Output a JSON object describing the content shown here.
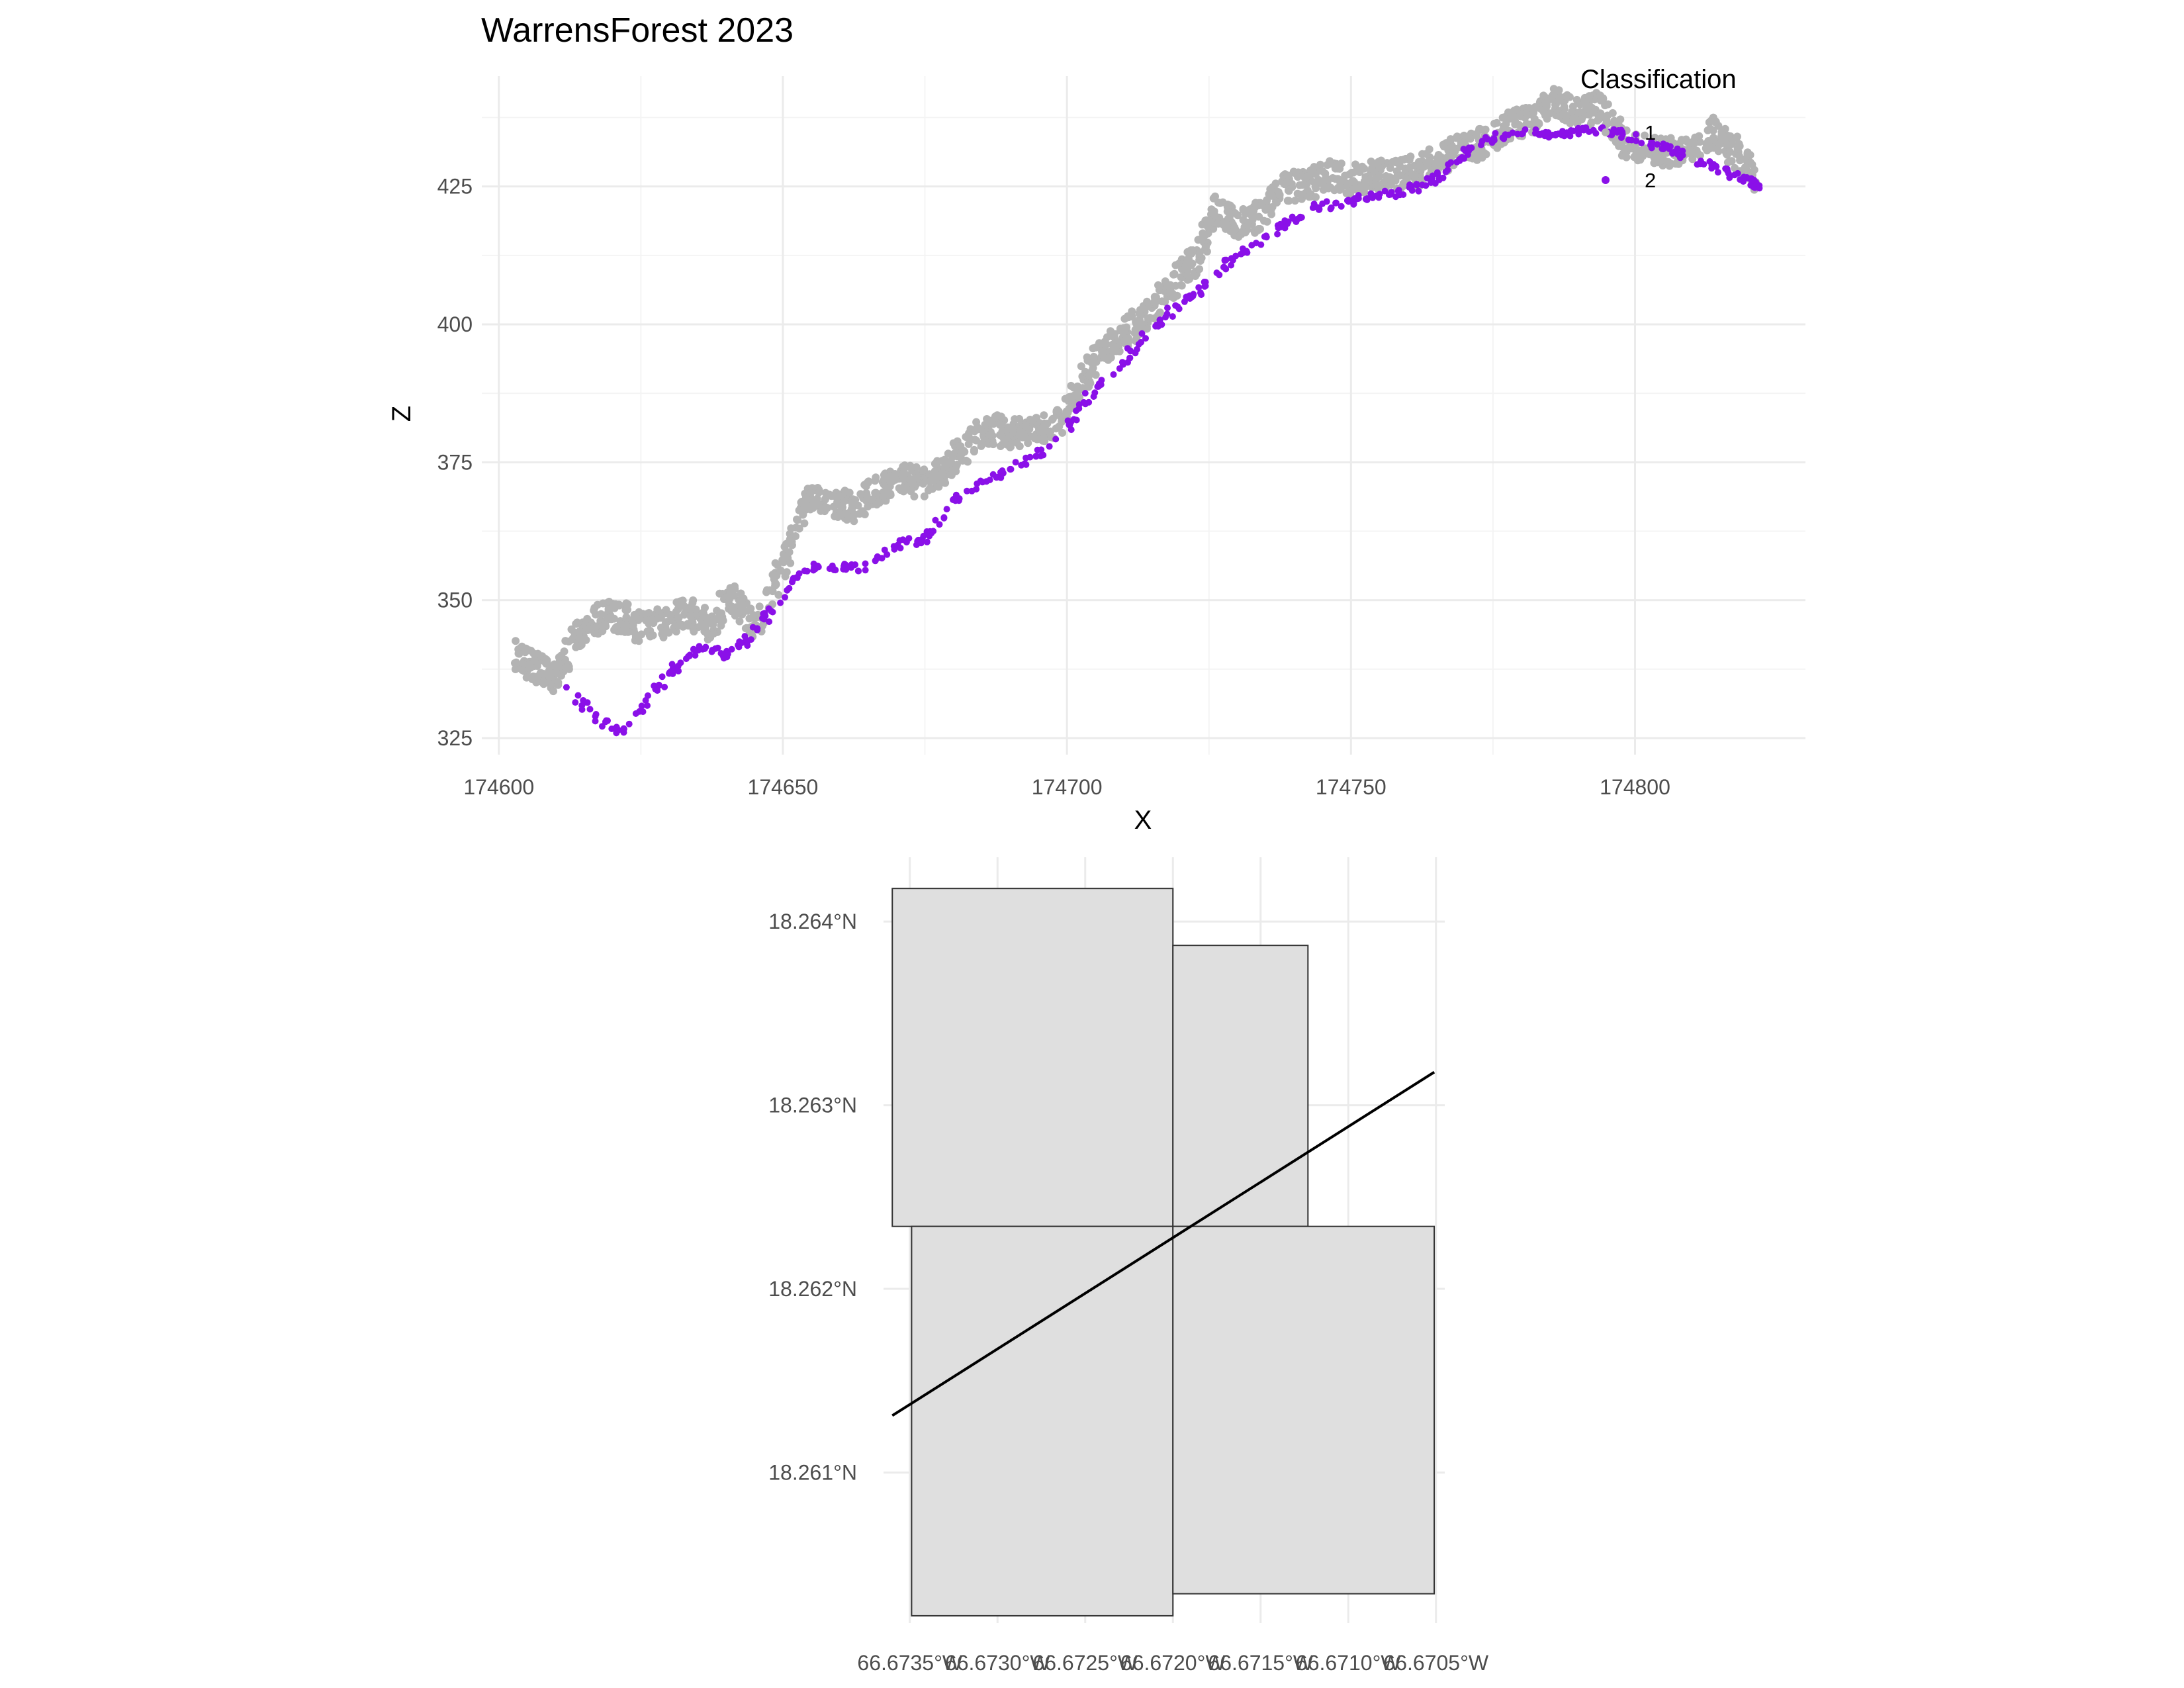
{
  "chart_data": [
    {
      "type": "scatter",
      "title": "WarrensForest 2023",
      "xlabel": "X",
      "ylabel": "Z",
      "xlim": [
        174597,
        174830
      ],
      "ylim": [
        322,
        445
      ],
      "xticks": [
        174600,
        174650,
        174700,
        174750,
        174800
      ],
      "xtick_labels": [
        "174600",
        "174650",
        "174700",
        "174750",
        "174800"
      ],
      "yticks": [
        325,
        350,
        375,
        400,
        425
      ],
      "ytick_labels": [
        "325",
        "350",
        "375",
        "400",
        "425"
      ],
      "grid": true,
      "legend": {
        "title": "Classification",
        "placement": "top-right",
        "entries": [
          {
            "label": "1",
            "color": "#b3b3b3"
          },
          {
            "label": "2",
            "color": "#8a10e8"
          }
        ]
      },
      "series": [
        {
          "name": "1",
          "color": "#b3b3b3",
          "profile": [
            [
              174603,
              340
            ],
            [
              174606,
              338
            ],
            [
              174610,
              336
            ],
            [
              174614,
              344
            ],
            [
              174618,
              347
            ],
            [
              174622,
              347
            ],
            [
              174625,
              345
            ],
            [
              174629,
              346
            ],
            [
              174633,
              348
            ],
            [
              174637,
              345
            ],
            [
              174641,
              351
            ],
            [
              174645,
              345
            ],
            [
              174650,
              356
            ],
            [
              174654,
              369
            ],
            [
              174658,
              368
            ],
            [
              174662,
              367
            ],
            [
              174667,
              370
            ],
            [
              174671,
              372
            ],
            [
              174675,
              371
            ],
            [
              174679,
              374
            ],
            [
              174683,
              379
            ],
            [
              174687,
              381
            ],
            [
              174691,
              380
            ],
            [
              174695,
              381
            ],
            [
              174699,
              382
            ],
            [
              174703,
              391
            ],
            [
              174707,
              396
            ],
            [
              174711,
              399
            ],
            [
              174715,
              402
            ],
            [
              174719,
              408
            ],
            [
              174723,
              412
            ],
            [
              174726,
              421
            ],
            [
              174730,
              418
            ],
            [
              174734,
              420
            ],
            [
              174738,
              425
            ],
            [
              174742,
              425
            ],
            [
              174746,
              427
            ],
            [
              174750,
              426
            ],
            [
              174754,
              427
            ],
            [
              174758,
              427
            ],
            [
              174762,
              428
            ],
            [
              174766,
              430
            ],
            [
              174770,
              432
            ],
            [
              174774,
              433
            ],
            [
              174778,
              436
            ],
            [
              174782,
              437
            ],
            [
              174786,
              440
            ],
            [
              174790,
              438
            ],
            [
              174794,
              440
            ],
            [
              174798,
              433
            ],
            [
              174802,
              432
            ],
            [
              174806,
              431
            ],
            [
              174810,
              432
            ],
            [
              174814,
              435
            ],
            [
              174818,
              431
            ],
            [
              174821,
              427
            ]
          ]
        },
        {
          "name": "2",
          "color": "#8a10e8",
          "profile": [
            [
              174612,
              334
            ],
            [
              174618,
              328
            ],
            [
              174622,
              326
            ],
            [
              174628,
              334
            ],
            [
              174632,
              339
            ],
            [
              174636,
              342
            ],
            [
              174640,
              340
            ],
            [
              174644,
              343
            ],
            [
              174648,
              348
            ],
            [
              174654,
              356
            ],
            [
              174660,
              356
            ],
            [
              174664,
              356
            ],
            [
              174670,
              360
            ],
            [
              174675,
              361
            ],
            [
              174680,
              368
            ],
            [
              174686,
              372
            ],
            [
              174692,
              375
            ],
            [
              174698,
              378
            ],
            [
              174703,
              386
            ],
            [
              174708,
              391
            ],
            [
              174713,
              397
            ],
            [
              174718,
              402
            ],
            [
              174723,
              406
            ],
            [
              174728,
              411
            ],
            [
              174733,
              414
            ],
            [
              174738,
              418
            ],
            [
              174743,
              421
            ],
            [
              174748,
              422
            ],
            [
              174753,
              423
            ],
            [
              174758,
              424
            ],
            [
              174762,
              425
            ],
            [
              174766,
              427
            ],
            [
              174770,
              431
            ],
            [
              174775,
              434
            ],
            [
              174780,
              435
            ],
            [
              174785,
              434
            ],
            [
              174790,
              435
            ],
            [
              174795,
              435
            ],
            [
              174800,
              434
            ],
            [
              174805,
              432
            ],
            [
              174810,
              430
            ],
            [
              174815,
              428
            ],
            [
              174820,
              426
            ],
            [
              174822,
              425
            ]
          ]
        }
      ]
    },
    {
      "type": "map",
      "xlim": [
        -66.67365,
        -66.67045
      ],
      "ylim": [
        18.26018,
        18.26435
      ],
      "xticks": [
        -66.6735,
        -66.673,
        -66.6725,
        -66.672,
        -66.6715,
        -66.671,
        -66.6705
      ],
      "xtick_labels": [
        "66.6735°W",
        "66.6730°W",
        "66.6725°W",
        "66.6720°W",
        "66.6715°W",
        "66.6710°W",
        "66.6705°W"
      ],
      "yticks": [
        18.261,
        18.262,
        18.263,
        18.264
      ],
      "ytick_labels": [
        "18.261°N",
        "18.262°N",
        "18.263°N",
        "18.264°N"
      ],
      "grid": true,
      "tile_fill": "#dfdfdf",
      "tiles": [
        {
          "name": "tile-top-left",
          "lon": [
            -66.6736,
            -66.672
          ],
          "lat": [
            18.26234,
            18.26418
          ]
        },
        {
          "name": "tile-top-right",
          "lon": [
            -66.672,
            -66.67123
          ],
          "lat": [
            18.26234,
            18.26387
          ]
        },
        {
          "name": "tile-bottom-left",
          "lon": [
            -66.67349,
            -66.672
          ],
          "lat": [
            18.26022,
            18.26234
          ]
        },
        {
          "name": "tile-bottom-right",
          "lon": [
            -66.672,
            -66.67051
          ],
          "lat": [
            18.26034,
            18.26234
          ]
        }
      ],
      "transect": [
        [
          -66.6736,
          18.26131
        ],
        [
          -66.67051,
          18.26318
        ]
      ]
    }
  ]
}
